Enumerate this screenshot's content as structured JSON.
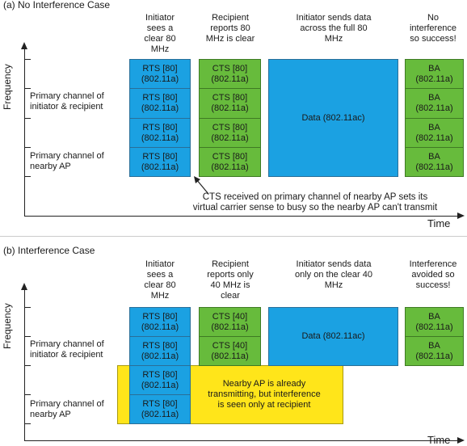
{
  "panel_a": {
    "caption": "(a) No Interference Case",
    "y_axis": "Frequency",
    "x_axis": "Time",
    "label_primary": [
      "Primary channel of",
      "initiator & recipient"
    ],
    "label_nearby": [
      "Primary channel of",
      "nearby AP"
    ],
    "headers": {
      "initiator": [
        "Initiator",
        "sees a",
        "clear 80",
        "MHz"
      ],
      "recipient": [
        "Recipient",
        "reports 80",
        "MHz is clear"
      ],
      "data": [
        "Initiator sends data",
        "across the full 80",
        "MHz"
      ],
      "result": [
        "No",
        "interference",
        "so success!"
      ]
    },
    "rts": [
      [
        "RTS [80]",
        "(802.11a)"
      ],
      [
        "RTS [80]",
        "(802.11a)"
      ],
      [
        "RTS [80]",
        "(802.11a)"
      ],
      [
        "RTS [80]",
        "(802.11a)"
      ]
    ],
    "cts": [
      [
        "CTS [80]",
        "(802.11a)"
      ],
      [
        "CTS [80]",
        "(802.11a)"
      ],
      [
        "CTS [80]",
        "(802.11a)"
      ],
      [
        "CTS [80]",
        "(802.11a)"
      ]
    ],
    "data_box": "Data (802.11ac)",
    "ba": [
      [
        "BA",
        "(802.11a)"
      ],
      [
        "BA",
        "(802.11a)"
      ],
      [
        "BA",
        "(802.11a)"
      ],
      [
        "BA",
        "(802.11a)"
      ]
    ],
    "note": [
      "CTS received on primary channel of nearby AP sets its",
      "virtual carrier sense to busy so the nearby AP  can't transmit"
    ]
  },
  "panel_b": {
    "caption": "(b) Interference Case",
    "y_axis": "Frequency",
    "x_axis": "Time",
    "label_primary": [
      "Primary channel of",
      "initiator & recipient"
    ],
    "label_nearby": [
      "Primary channel of",
      "nearby AP"
    ],
    "headers": {
      "initiator": [
        "Initiator",
        "sees a",
        "clear 80",
        "MHz"
      ],
      "recipient": [
        "Recipient",
        "reports only",
        "40 MHz is",
        "clear"
      ],
      "data": [
        "Initiator sends data",
        "only on the clear 40",
        "MHz"
      ],
      "result": [
        "Interference",
        "avoided so",
        "success!"
      ]
    },
    "rts": [
      [
        "RTS [80]",
        "(802.11a)"
      ],
      [
        "RTS [80]",
        "(802.11a)"
      ],
      [
        "RTS [80]",
        "(802.11a)"
      ],
      [
        "RTS [80]",
        "(802.11a)"
      ]
    ],
    "cts": [
      [
        "CTS [40]",
        "(802.11a)"
      ],
      [
        "CTS [40]",
        "(802.11a)"
      ]
    ],
    "data_box": "Data (802.11ac)",
    "ba": [
      [
        "BA",
        "(802.11a)"
      ],
      [
        "BA",
        "(802.11a)"
      ]
    ],
    "nearby_note": [
      "Nearby AP is already",
      "transmitting, but interference",
      "is seen only at recipient"
    ]
  },
  "colors": {
    "rts": "#1ba1e2",
    "cts": "#67bb3c",
    "data": "#1ba1e2",
    "ba": "#67bb3c",
    "interference": "#ffe51a"
  }
}
